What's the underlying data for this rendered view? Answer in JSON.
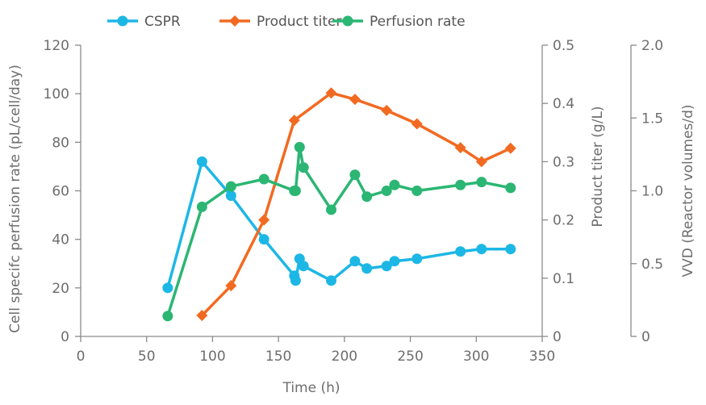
{
  "chart_data": {
    "type": "line",
    "xlabel": "Time (h)",
    "xlim": [
      0,
      350
    ],
    "xticks": [
      0,
      50,
      100,
      150,
      200,
      250,
      300,
      350
    ],
    "axes": {
      "left": {
        "label": "Cell specifc perfusion rate (pL/cell/day)",
        "lim": [
          0,
          120
        ],
        "ticks": [
          "0",
          "20",
          "40",
          "60",
          "80",
          "100",
          "120"
        ]
      },
      "right1": {
        "label": "Product titer (g/L)",
        "lim": [
          0,
          0.5
        ],
        "ticks": [
          "0",
          "0.1",
          "0.2",
          "0.3",
          "0.4",
          "0.5"
        ]
      },
      "right2": {
        "label": "VVD (Reactor volumes/d)",
        "lim": [
          0,
          2.0
        ],
        "ticks": [
          "0",
          "0.5",
          "1.0",
          "1.5",
          "2.0"
        ]
      }
    },
    "legend_position": "top",
    "series": [
      {
        "name": "CSPR",
        "axis": "left",
        "color": "#1db7e6",
        "marker": "circle",
        "x": [
          66,
          92,
          114,
          139,
          162,
          163,
          166,
          169,
          190,
          208,
          217,
          232,
          238,
          255,
          288,
          304,
          326
        ],
        "y": [
          20,
          72,
          58,
          40,
          25,
          23,
          32,
          29,
          23,
          31,
          28,
          29,
          31,
          32,
          35,
          36,
          36
        ]
      },
      {
        "name": "Product titer",
        "axis": "right1",
        "color": "#f26a21",
        "marker": "diamond",
        "x": [
          92,
          114,
          139,
          162,
          190,
          208,
          232,
          255,
          288,
          304,
          326
        ],
        "y": [
          0.036,
          0.087,
          0.2,
          0.371,
          0.418,
          0.407,
          0.388,
          0.365,
          0.324,
          0.3,
          0.323
        ]
      },
      {
        "name": "Perfusion rate",
        "axis": "right2",
        "color": "#2bb673",
        "marker": "circle",
        "x": [
          66,
          92,
          114,
          139,
          162,
          163,
          166,
          169,
          190,
          208,
          217,
          232,
          238,
          255,
          288,
          304,
          326
        ],
        "y": [
          0.14,
          0.89,
          1.03,
          1.08,
          1.0,
          1.0,
          1.3,
          1.16,
          0.87,
          1.11,
          0.96,
          1.0,
          1.04,
          1.0,
          1.04,
          1.06,
          1.02
        ]
      }
    ]
  }
}
